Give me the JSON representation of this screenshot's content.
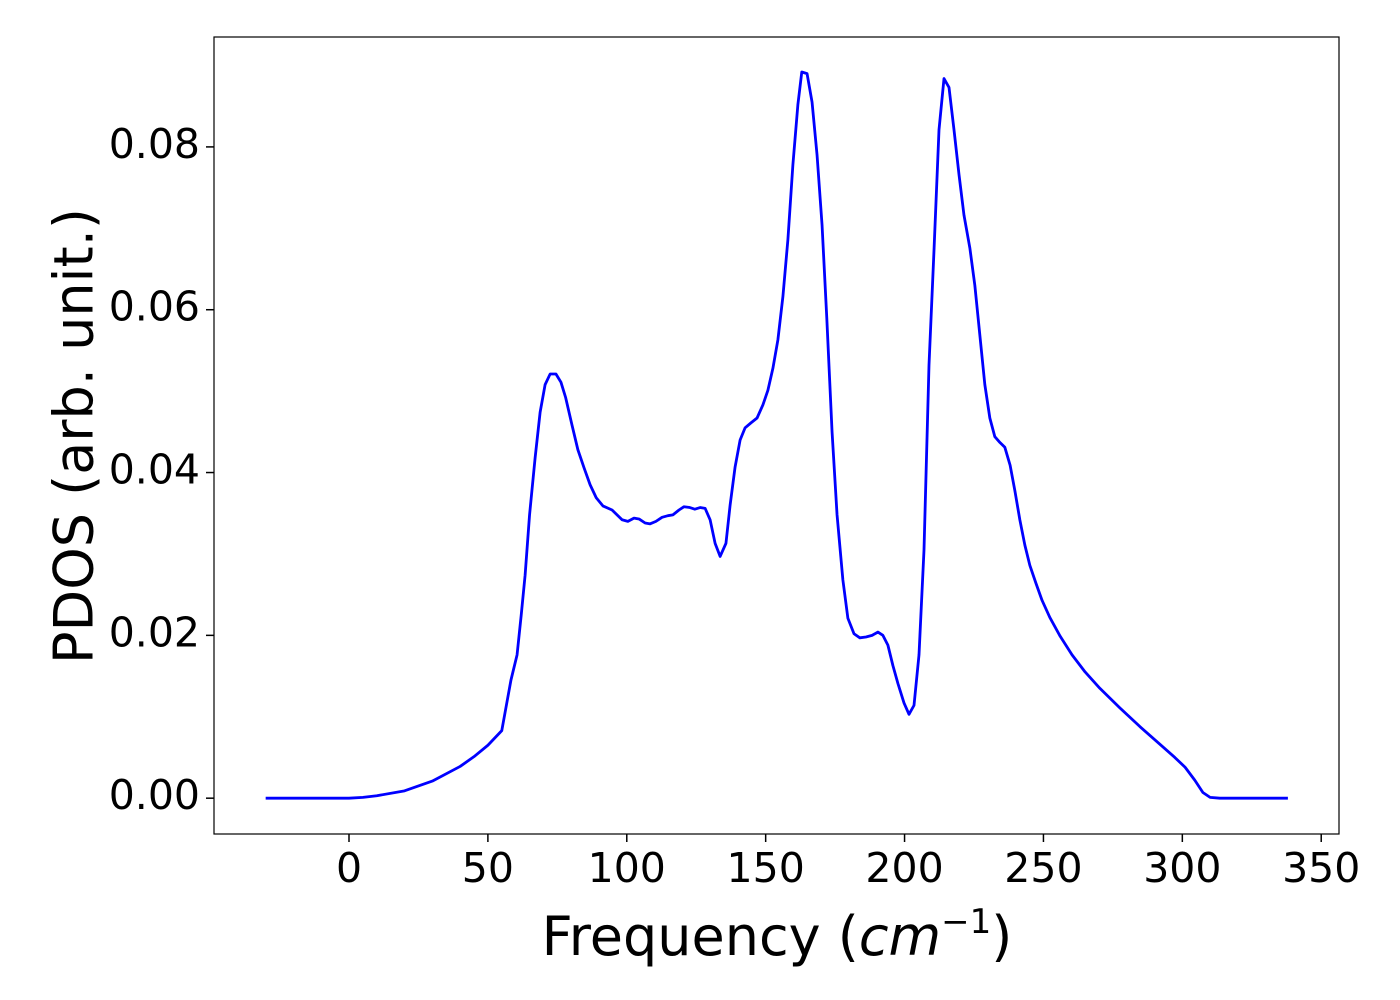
{
  "chart_data": {
    "type": "line",
    "xlabel": {
      "text": "Frequency (",
      "math": "cm",
      "sup": "−1",
      "close": ")"
    },
    "ylabel": "PDOS (arb. unit.)",
    "xlim": [
      -48.6,
      356.4
    ],
    "ylim": [
      -0.0044,
      0.0935
    ],
    "xticks": [
      0,
      50,
      100,
      150,
      200,
      250,
      300,
      350
    ],
    "yticks": [
      {
        "value": 0,
        "label": "0.00"
      },
      {
        "value": 0.02,
        "label": "0.02"
      },
      {
        "value": 0.04,
        "label": "0.04"
      },
      {
        "value": 0.06,
        "label": "0.06"
      },
      {
        "value": 0.08,
        "label": "0.08"
      }
    ],
    "x": [
      -30,
      0,
      5,
      10,
      20,
      30,
      40,
      45,
      50,
      55,
      58.3,
      60.5,
      62,
      63.4,
      65,
      67,
      68.8,
      70.6,
      72.4,
      74.5,
      76.3,
      78,
      80.3,
      82.4,
      84.6,
      86.8,
      89,
      91.4,
      94.7,
      96.5,
      98.3,
      100.4,
      102.6,
      104.4,
      106.6,
      108.4,
      110.5,
      112.7,
      114.8,
      116.6,
      118.8,
      120.6,
      122.7,
      124.5,
      126.4,
      128.2,
      130,
      131.8,
      133.6,
      135.7,
      137.2,
      139,
      140.8,
      142.6,
      144.7,
      146.9,
      149,
      150.8,
      152.6,
      154.4,
      156.2,
      158,
      159.8,
      161.6,
      163,
      164.9,
      166.7,
      168.5,
      170.3,
      172,
      173.9,
      175.7,
      177.8,
      179.6,
      181.8,
      183.9,
      186.1,
      188.3,
      190.4,
      192.2,
      194,
      195.8,
      197.6,
      199.8,
      201.6,
      203.4,
      205.2,
      207,
      208.8,
      210.6,
      212.4,
      214.2,
      216,
      217.8,
      219.6,
      221.4,
      223.5,
      225.3,
      227.1,
      228.9,
      230.7,
      232.5,
      234.3,
      236.1,
      238,
      239.7,
      241.5,
      243.3,
      245.1,
      247.3,
      249.5,
      252.3,
      256,
      260.3,
      265,
      270.3,
      277.5,
      284.7,
      292,
      297.3,
      301,
      304.5,
      307.4,
      310,
      313.5,
      338
    ],
    "series": [
      {
        "color": "#0000ff",
        "values": [
          0,
          0,
          0.0001,
          0.0003,
          0.0009,
          0.0021,
          0.0039,
          0.0051,
          0.0065,
          0.0083,
          0.0145,
          0.0176,
          0.0225,
          0.0274,
          0.0348,
          0.0418,
          0.0474,
          0.0508,
          0.0521,
          0.0521,
          0.0511,
          0.0492,
          0.0458,
          0.0428,
          0.0406,
          0.0385,
          0.0369,
          0.0359,
          0.0354,
          0.0348,
          0.0342,
          0.034,
          0.0344,
          0.0343,
          0.0338,
          0.0337,
          0.034,
          0.0345,
          0.0347,
          0.0348,
          0.0354,
          0.0358,
          0.0357,
          0.0355,
          0.0357,
          0.0356,
          0.0342,
          0.0313,
          0.0297,
          0.0313,
          0.036,
          0.0407,
          0.044,
          0.0455,
          0.0461,
          0.0467,
          0.0483,
          0.0501,
          0.0528,
          0.0563,
          0.0616,
          0.0686,
          0.0778,
          0.0852,
          0.0892,
          0.089,
          0.0855,
          0.079,
          0.0704,
          0.059,
          0.045,
          0.0348,
          0.0268,
          0.0221,
          0.0202,
          0.0197,
          0.0198,
          0.02,
          0.0204,
          0.02,
          0.0188,
          0.0163,
          0.0141,
          0.0117,
          0.0103,
          0.0114,
          0.0176,
          0.0305,
          0.0532,
          0.0673,
          0.0821,
          0.0884,
          0.0873,
          0.0821,
          0.0766,
          0.0716,
          0.0676,
          0.063,
          0.0569,
          0.0508,
          0.0467,
          0.0444,
          0.0437,
          0.0431,
          0.0409,
          0.0378,
          0.0342,
          0.0311,
          0.0286,
          0.0264,
          0.0243,
          0.0222,
          0.0199,
          0.0176,
          0.0155,
          0.0135,
          0.0111,
          0.0088,
          0.0066,
          0.005,
          0.0038,
          0.0022,
          0.0007,
          0.0001,
          0,
          0
        ]
      }
    ]
  }
}
